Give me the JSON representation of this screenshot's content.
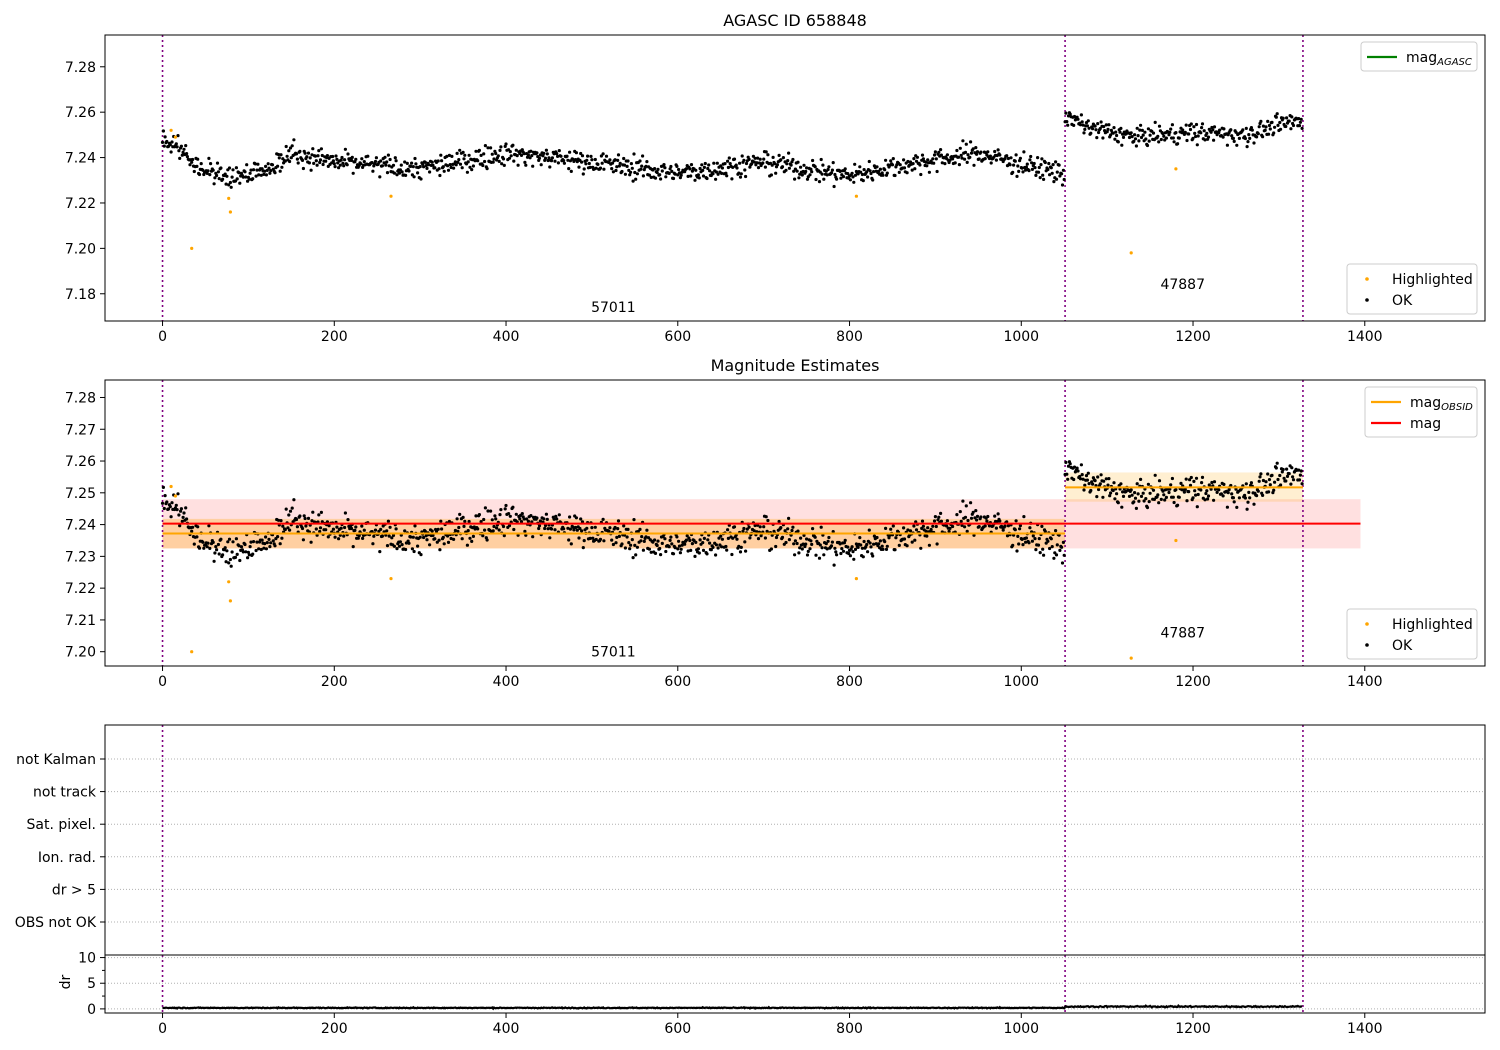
{
  "chart_data": [
    {
      "type": "scatter",
      "title": "AGASC ID 658848",
      "xlabel": "",
      "ylabel": "",
      "xlim": [
        -67,
        1540
      ],
      "ylim": [
        7.168,
        7.294
      ],
      "xticks": [
        0,
        200,
        400,
        600,
        800,
        1000,
        1200,
        1400
      ],
      "yticks": [
        7.18,
        7.2,
        7.22,
        7.24,
        7.26,
        7.28
      ],
      "y_decimals": 2,
      "grid": false,
      "legend_top": {
        "position": "top-right",
        "entries": [
          {
            "label": "mag",
            "subscript": "AGASC",
            "color": "#008000",
            "kind": "line"
          }
        ]
      },
      "legend_bottom": {
        "position": "bottom-right",
        "entries": [
          {
            "label": "Highlighted",
            "color": "#ffa500",
            "kind": "dot"
          },
          {
            "label": "OK",
            "color": "#000000",
            "kind": "dot"
          }
        ]
      },
      "obs_boundaries": [
        0,
        1051,
        1328
      ],
      "obs_labels": [
        {
          "text": "57011",
          "x": 525,
          "y": 7.172
        },
        {
          "text": "47887",
          "x": 1188,
          "y": 7.182
        }
      ],
      "series": [
        {
          "name": "OK",
          "color": "#000000",
          "segments": [
            {
              "x_start": 0,
              "x_end": 1051,
              "base": 7.236,
              "spread": 0.0045,
              "anchors": [
                [
                  0,
                  7.248
                ],
                [
                  20,
                  7.245
                ],
                [
                  40,
                  7.236
                ],
                [
                  80,
                  7.231
                ],
                [
                  100,
                  7.233
                ],
                [
                  130,
                  7.237
                ],
                [
                  150,
                  7.242
                ],
                [
                  200,
                  7.238
                ],
                [
                  300,
                  7.235
                ],
                [
                  400,
                  7.242
                ],
                [
                  500,
                  7.238
                ],
                [
                  600,
                  7.233
                ],
                [
                  700,
                  7.238
                ],
                [
                  800,
                  7.232
                ],
                [
                  850,
                  7.236
                ],
                [
                  950,
                  7.242
                ],
                [
                  1000,
                  7.237
                ],
                [
                  1051,
                  7.233
                ]
              ]
            },
            {
              "x_start": 1051,
              "x_end": 1328,
              "base": 7.252,
              "spread": 0.004,
              "anchors": [
                [
                  1051,
                  7.258
                ],
                [
                  1080,
                  7.253
                ],
                [
                  1130,
                  7.249
                ],
                [
                  1200,
                  7.251
                ],
                [
                  1260,
                  7.25
                ],
                [
                  1328,
                  7.257
                ]
              ]
            }
          ]
        },
        {
          "name": "Highlighted",
          "color": "#ffa500",
          "points": [
            [
              10,
              7.252
            ],
            [
              15,
              7.249
            ],
            [
              34,
              7.2
            ],
            [
              77,
              7.222
            ],
            [
              79,
              7.216
            ],
            [
              266,
              7.223
            ],
            [
              808,
              7.223
            ],
            [
              1128,
              7.198
            ],
            [
              1180,
              7.235
            ]
          ]
        }
      ]
    },
    {
      "type": "scatter",
      "title": "Magnitude Estimates",
      "xlabel": "",
      "ylabel": "",
      "xlim": [
        -67,
        1540
      ],
      "ylim": [
        7.1955,
        7.2855
      ],
      "xticks": [
        0,
        200,
        400,
        600,
        800,
        1000,
        1200,
        1400
      ],
      "yticks": [
        7.2,
        7.21,
        7.22,
        7.23,
        7.24,
        7.25,
        7.26,
        7.27,
        7.28
      ],
      "y_decimals": 2,
      "grid": false,
      "legend_top": {
        "position": "top-right",
        "entries": [
          {
            "label": "mag",
            "subscript": "OBSID",
            "color": "#ffa500",
            "kind": "line"
          },
          {
            "label": "mag",
            "color": "#ff0000",
            "kind": "line"
          }
        ]
      },
      "legend_bottom": {
        "position": "bottom-right",
        "entries": [
          {
            "label": "Highlighted",
            "color": "#ffa500",
            "kind": "dot"
          },
          {
            "label": "OK",
            "color": "#000000",
            "kind": "dot"
          }
        ]
      },
      "obs_boundaries": [
        0,
        1051,
        1328
      ],
      "obs_labels": [
        {
          "text": "57011",
          "x": 525,
          "y": 7.1985
        },
        {
          "text": "47887",
          "x": 1188,
          "y": 7.2045
        }
      ],
      "bands": [
        {
          "color": "#ff0000",
          "alpha": 0.12,
          "x_start": 0,
          "x_end": 1395,
          "y_low": 7.2325,
          "y_high": 7.248
        },
        {
          "color": "#ffa500",
          "alpha": 0.28,
          "x_start": 0,
          "x_end": 1051,
          "y_low": 7.2325,
          "y_high": 7.2418
        },
        {
          "color": "#ffa500",
          "alpha": 0.18,
          "x_start": 1051,
          "x_end": 1328,
          "y_low": 7.2472,
          "y_high": 7.2564
        }
      ],
      "lines": [
        {
          "name": "mag",
          "color": "#ff0000",
          "x_start": 0,
          "x_end": 1395,
          "y": 7.2403
        },
        {
          "name": "mag_OBSID",
          "color": "#ffa500",
          "x_start": 0,
          "x_end": 1051,
          "y": 7.2372
        },
        {
          "name": "mag_OBSID",
          "color": "#ffa500",
          "x_start": 1051,
          "x_end": 1328,
          "y": 7.2517
        }
      ],
      "series": [
        {
          "name": "OK",
          "color": "#000000",
          "same_as_chart": 0
        },
        {
          "name": "Highlighted",
          "color": "#ffa500",
          "points": [
            [
              10,
              7.252
            ],
            [
              15,
              7.249
            ],
            [
              34,
              7.2
            ],
            [
              77,
              7.222
            ],
            [
              79,
              7.216
            ],
            [
              266,
              7.223
            ],
            [
              808,
              7.223
            ],
            [
              1128,
              7.198
            ],
            [
              1180,
              7.235
            ]
          ]
        }
      ]
    },
    {
      "type": "scatter",
      "title": "",
      "xlabel": "",
      "ylabel": "",
      "xlim": [
        -67,
        1540
      ],
      "categories": [
        "OBS not OK",
        "dr > 5",
        "Ion. rad.",
        "Sat. pixel.",
        "not track",
        "not Kalman"
      ],
      "grid": true,
      "obs_boundaries": [
        0,
        1051,
        1328
      ],
      "series": []
    },
    {
      "type": "line",
      "title": "",
      "xlabel": "",
      "ylabel": "dr",
      "xlim": [
        -67,
        1540
      ],
      "ylim": [
        -0.8,
        10.5
      ],
      "xticks": [
        0,
        200,
        400,
        600,
        800,
        1000,
        1200,
        1400
      ],
      "yticks": [
        0,
        5,
        10
      ],
      "y_decimals": 0,
      "grid": true,
      "obs_boundaries": [
        0,
        1051,
        1328
      ],
      "series": [
        {
          "name": "dr",
          "color": "#000000",
          "segments": [
            {
              "x_start": 0,
              "x_end": 1051,
              "base": 0.2,
              "spread": 0.12
            },
            {
              "x_start": 1051,
              "x_end": 1328,
              "base": 0.45,
              "spread": 0.18
            }
          ]
        }
      ]
    }
  ]
}
